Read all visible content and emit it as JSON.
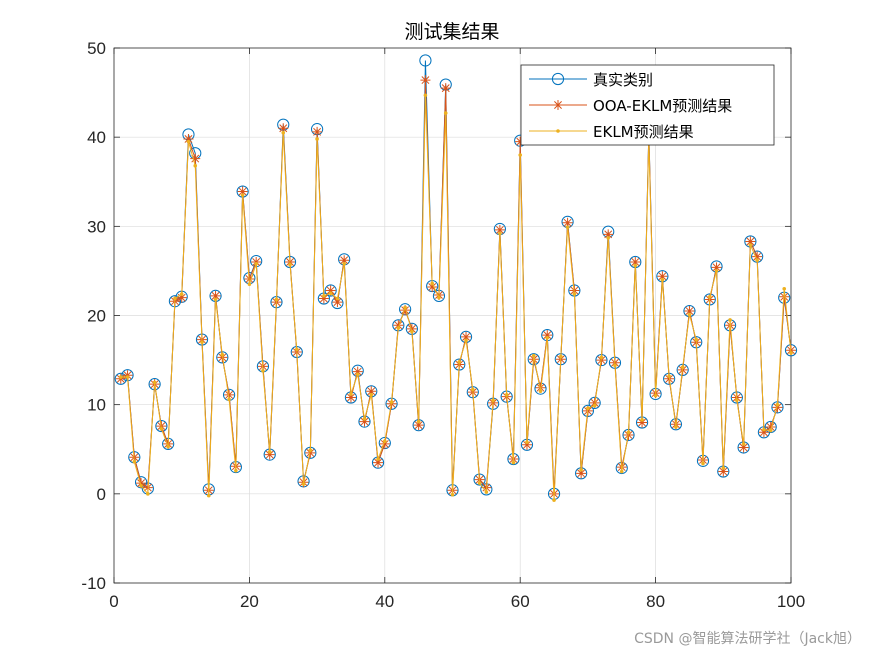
{
  "watermark": "CSDN @智能算法研学社（Jack旭）",
  "chart_data": {
    "type": "line",
    "title": "测试集结果",
    "xlabel": "",
    "ylabel": "",
    "xlim": [
      0,
      100
    ],
    "ylim": [
      -10,
      50
    ],
    "xticks": [
      0,
      20,
      40,
      60,
      80,
      100
    ],
    "yticks": [
      -10,
      0,
      10,
      20,
      30,
      40,
      50
    ],
    "grid": true,
    "legend_position": "top-right",
    "x": [
      1,
      2,
      3,
      4,
      5,
      6,
      7,
      8,
      9,
      10,
      11,
      12,
      13,
      14,
      15,
      16,
      17,
      18,
      19,
      20,
      21,
      22,
      23,
      24,
      25,
      26,
      27,
      28,
      29,
      30,
      31,
      32,
      33,
      34,
      35,
      36,
      37,
      38,
      39,
      40,
      41,
      42,
      43,
      44,
      45,
      46,
      47,
      48,
      49,
      50,
      51,
      52,
      53,
      54,
      55,
      56,
      57,
      58,
      59,
      60,
      61,
      62,
      63,
      64,
      65,
      66,
      67,
      68,
      69,
      70,
      71,
      72,
      73,
      74,
      75,
      76,
      77,
      78,
      79,
      80,
      81,
      82,
      83,
      84,
      85,
      86,
      87,
      88,
      89,
      90,
      91,
      92,
      93,
      94,
      95,
      96,
      97,
      98,
      99,
      100
    ],
    "series": [
      {
        "name": "真实类别",
        "color": "#0072BD",
        "marker": "circle",
        "values": [
          12.9,
          13.3,
          4.1,
          1.3,
          0.6,
          12.3,
          7.6,
          5.6,
          21.6,
          22.1,
          40.3,
          38.2,
          17.3,
          0.5,
          22.2,
          15.3,
          11.1,
          3.0,
          33.9,
          24.2,
          26.1,
          14.3,
          4.4,
          21.5,
          41.4,
          26.0,
          15.9,
          1.4,
          4.6,
          40.9,
          21.9,
          22.8,
          21.4,
          26.3,
          10.8,
          13.8,
          8.1,
          11.5,
          3.5,
          5.7,
          10.1,
          18.9,
          20.7,
          18.5,
          7.7,
          48.6,
          23.3,
          22.2,
          45.9,
          0.4,
          14.5,
          17.6,
          11.4,
          1.6,
          0.5,
          10.1,
          29.7,
          10.9,
          3.9,
          39.6,
          5.5,
          15.1,
          11.8,
          17.8,
          0.0,
          15.1,
          30.5,
          22.8,
          2.3,
          9.3,
          10.2,
          15.0,
          29.4,
          14.7,
          2.9,
          6.6,
          26.0,
          8.0,
          40.5,
          11.2,
          24.4,
          12.9,
          7.8,
          13.9,
          20.5,
          17.0,
          3.7,
          21.8,
          25.5,
          2.5,
          18.9,
          10.8,
          5.2,
          28.3,
          26.6,
          6.9,
          7.5,
          9.7,
          22.0,
          16.1
        ]
      },
      {
        "name": "OOA-EKLM预测结果",
        "color": "#D95319",
        "marker": "asterisk",
        "values": [
          12.9,
          13.3,
          4.1,
          1.2,
          0.7,
          12.3,
          7.6,
          5.6,
          21.6,
          22.0,
          39.8,
          37.6,
          17.3,
          0.4,
          22.2,
          15.3,
          11.1,
          3.1,
          33.9,
          24.1,
          26.0,
          14.3,
          4.4,
          21.5,
          41.0,
          26.0,
          15.9,
          1.3,
          4.6,
          40.6,
          21.9,
          22.8,
          21.5,
          26.2,
          10.8,
          13.7,
          8.1,
          11.5,
          3.5,
          5.6,
          10.1,
          18.9,
          20.6,
          18.5,
          7.7,
          46.4,
          23.2,
          22.3,
          45.5,
          0.4,
          14.5,
          17.6,
          11.4,
          1.6,
          0.7,
          10.2,
          29.6,
          10.9,
          3.9,
          39.5,
          5.5,
          15.1,
          11.9,
          17.8,
          0.0,
          15.1,
          30.4,
          22.8,
          2.3,
          9.3,
          10.2,
          15.0,
          29.1,
          14.7,
          3.0,
          6.6,
          26.0,
          8.0,
          40.4,
          11.3,
          24.4,
          12.9,
          7.8,
          13.9,
          20.5,
          17.0,
          3.8,
          21.8,
          25.4,
          2.5,
          18.9,
          10.8,
          5.2,
          28.3,
          26.6,
          6.9,
          7.5,
          9.7,
          22.1,
          16.1
        ]
      },
      {
        "name": "EKLM预测结果",
        "color": "#EDB120",
        "marker": "point",
        "values": [
          13.1,
          13.1,
          3.6,
          0.9,
          0.0,
          12.5,
          7.3,
          5.3,
          21.9,
          22.4,
          39.5,
          36.8,
          17.0,
          -0.2,
          21.8,
          15.6,
          10.6,
          2.6,
          33.5,
          23.5,
          25.8,
          13.8,
          4.7,
          21.8,
          40.5,
          25.7,
          16.2,
          1.1,
          4.9,
          39.8,
          22.2,
          22.5,
          21.9,
          25.8,
          11.2,
          13.4,
          8.4,
          11.1,
          3.9,
          5.9,
          10.3,
          18.6,
          20.9,
          18.2,
          8.1,
          44.7,
          23.6,
          22.0,
          42.7,
          -0.1,
          14.8,
          17.2,
          11.7,
          1.2,
          0.2,
          10.5,
          29.2,
          11.1,
          3.5,
          38.0,
          5.8,
          15.5,
          11.5,
          17.5,
          -0.7,
          15.4,
          29.9,
          22.4,
          2.7,
          9.6,
          9.9,
          15.3,
          28.7,
          14.4,
          2.5,
          6.9,
          25.6,
          8.3,
          39.6,
          11.0,
          24.0,
          13.2,
          7.5,
          14.2,
          20.1,
          17.3,
          3.4,
          22.1,
          25.0,
          2.9,
          19.5,
          10.5,
          5.6,
          27.9,
          26.2,
          7.2,
          7.1,
          10.0,
          23.0,
          15.8
        ]
      }
    ]
  }
}
